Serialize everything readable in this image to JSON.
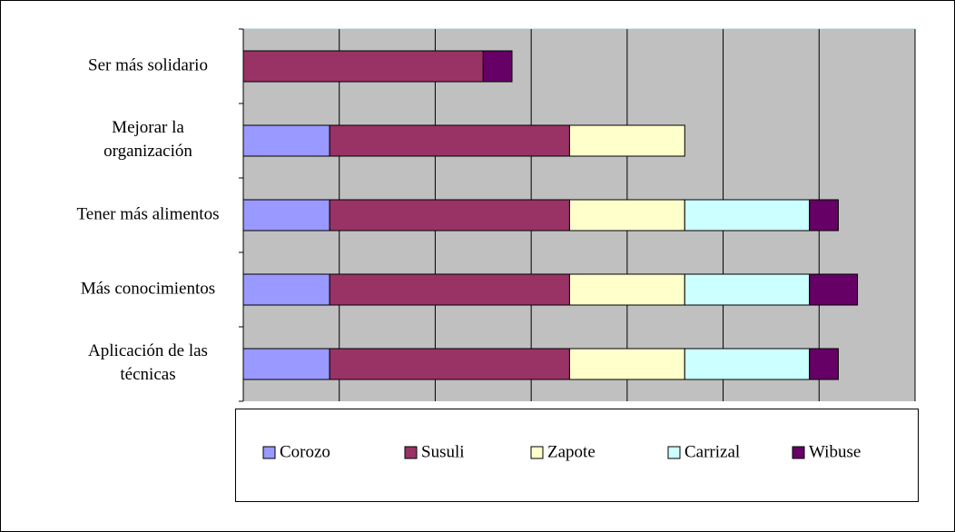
{
  "chart_data": {
    "type": "stacked-bar-horizontal",
    "categories": [
      "Ser más solidario",
      "Mejorar la\norganización",
      "Tener más alimentos",
      "Más conocimientos",
      "Aplicación de las\ntécnicas"
    ],
    "series": [
      {
        "name": "Corozo",
        "color": "#9999ff",
        "values": [
          0,
          0.9,
          0.9,
          0.9,
          0.9
        ]
      },
      {
        "name": "Susuli",
        "color": "#993366",
        "values": [
          2.5,
          2.5,
          2.5,
          2.5,
          2.5
        ]
      },
      {
        "name": "Zapote",
        "color": "#ffffcc",
        "values": [
          0,
          1.2,
          1.2,
          1.2,
          1.2
        ]
      },
      {
        "name": "Carrizal",
        "color": "#ccffff",
        "values": [
          0,
          0,
          1.3,
          1.3,
          1.3
        ]
      },
      {
        "name": "Wibuse",
        "color": "#660066",
        "values": [
          0.3,
          0,
          0.3,
          0.5,
          0.3
        ]
      }
    ],
    "xlim": [
      0,
      7
    ],
    "xticks": [
      0,
      1,
      2,
      3,
      4,
      5,
      6,
      7
    ],
    "grid": true,
    "legend": "bottom"
  }
}
